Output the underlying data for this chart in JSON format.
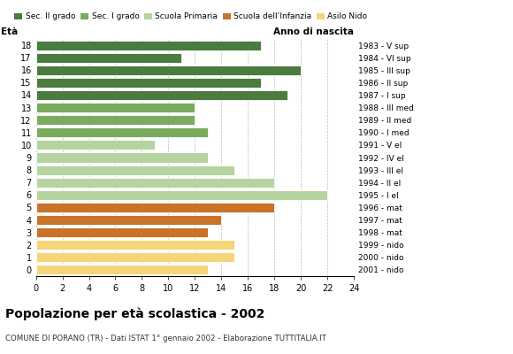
{
  "ages": [
    18,
    17,
    16,
    15,
    14,
    13,
    12,
    11,
    10,
    9,
    8,
    7,
    6,
    5,
    4,
    3,
    2,
    1,
    0
  ],
  "values": [
    17,
    11,
    20,
    17,
    19,
    12,
    12,
    13,
    9,
    13,
    15,
    18,
    22,
    18,
    14,
    13,
    15,
    15,
    13
  ],
  "right_labels": [
    "1983 - V sup",
    "1984 - VI sup",
    "1985 - III sup",
    "1986 - II sup",
    "1987 - I sup",
    "1988 - III med",
    "1989 - II med",
    "1990 - I med",
    "1991 - V el",
    "1992 - IV el",
    "1993 - III el",
    "1994 - II el",
    "1995 - I el",
    "1996 - mat",
    "1997 - mat",
    "1998 - mat",
    "1999 - nido",
    "2000 - nido",
    "2001 - nido"
  ],
  "bar_colors": [
    "#4a7c3f",
    "#4a7c3f",
    "#4a7c3f",
    "#4a7c3f",
    "#4a7c3f",
    "#7aab5e",
    "#7aab5e",
    "#7aab5e",
    "#b5d4a0",
    "#b5d4a0",
    "#b5d4a0",
    "#b5d4a0",
    "#b5d4a0",
    "#c8722a",
    "#c8722a",
    "#c8722a",
    "#f5d57a",
    "#f5d57a",
    "#f5d57a"
  ],
  "legend_labels": [
    "Sec. II grado",
    "Sec. I grado",
    "Scuola Primaria",
    "Scuola dell’Infanzia",
    "Asilo Nido"
  ],
  "legend_colors": [
    "#4a7c3f",
    "#7aab5e",
    "#b5d4a0",
    "#c8722a",
    "#f5d57a"
  ],
  "title": "Popolazione per età scolastica - 2002",
  "subtitle": "COMUNE DI PORANO (TR) - Dati ISTAT 1° gennaio 2002 - Elaborazione TUTTITALIA.IT",
  "xlabel_left": "Età",
  "xlabel_right": "Anno di nascita",
  "xlim": [
    0,
    24
  ],
  "xticks": [
    0,
    2,
    4,
    6,
    8,
    10,
    12,
    14,
    16,
    18,
    20,
    22,
    24
  ],
  "bg_color": "#ffffff",
  "grid_color": "#bbbbbb"
}
